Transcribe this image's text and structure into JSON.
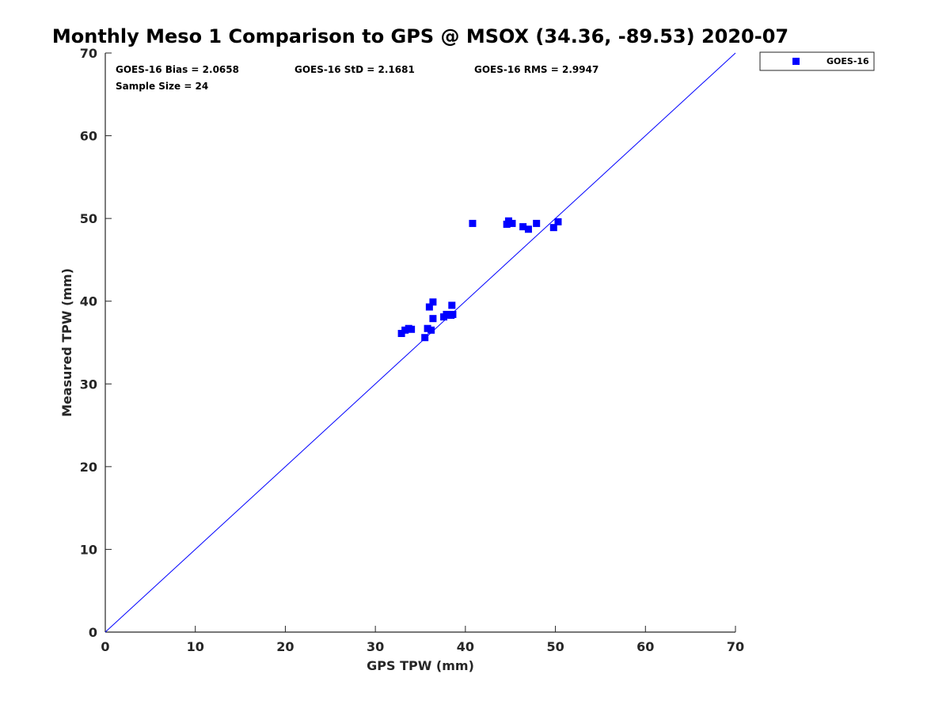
{
  "chart_data": {
    "type": "scatter",
    "title": "Monthly Meso 1 Comparison to GPS @ MSOX (34.36, -89.53) 2020-07",
    "xlabel": "GPS TPW (mm)",
    "ylabel": "Measured TPW (mm)",
    "xlim": [
      0,
      70
    ],
    "ylim": [
      0,
      70
    ],
    "xticks": [
      "0",
      "10",
      "20",
      "30",
      "40",
      "50",
      "60",
      "70"
    ],
    "yticks": [
      "0",
      "10",
      "20",
      "30",
      "40",
      "50",
      "60",
      "70"
    ],
    "grid": false,
    "legend_position": "outside-top-right",
    "stats": {
      "bias": "GOES-16 Bias = 2.0658",
      "std": "GOES-16 StD = 2.1681",
      "rms": "GOES-16 RMS = 2.9947",
      "sample_size": "Sample Size = 24"
    },
    "reference_line": {
      "from": [
        0,
        0
      ],
      "to": [
        70,
        70
      ],
      "color": "#0000ff"
    },
    "series": [
      {
        "name": "GOES-16",
        "color": "#0000ff",
        "marker": "square",
        "points": [
          [
            32.9,
            36.1
          ],
          [
            33.3,
            36.5
          ],
          [
            33.7,
            36.7
          ],
          [
            34.0,
            36.6
          ],
          [
            35.5,
            35.6
          ],
          [
            35.8,
            36.7
          ],
          [
            36.2,
            36.5
          ],
          [
            36.0,
            39.3
          ],
          [
            36.4,
            39.9
          ],
          [
            36.4,
            37.9
          ],
          [
            37.6,
            38.1
          ],
          [
            37.9,
            38.4
          ],
          [
            38.4,
            38.3
          ],
          [
            38.6,
            38.4
          ],
          [
            38.5,
            39.5
          ],
          [
            40.8,
            49.4
          ],
          [
            44.6,
            49.3
          ],
          [
            44.8,
            49.7
          ],
          [
            45.2,
            49.4
          ],
          [
            46.4,
            49.0
          ],
          [
            47.0,
            48.7
          ],
          [
            47.9,
            49.4
          ],
          [
            49.8,
            48.9
          ],
          [
            50.3,
            49.6
          ]
        ]
      }
    ]
  }
}
